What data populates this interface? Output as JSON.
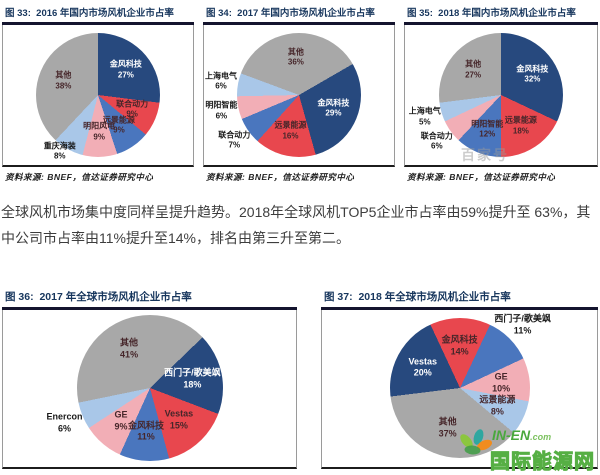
{
  "palette": {
    "navy": "#27497E",
    "red": "#E8474E",
    "blue": "#4A76BE",
    "pink": "#F2AEB6",
    "lightblue": "#A9C7E8",
    "gray": "#A8A8A8",
    "title_color": "#17365D",
    "watermark_green": "#4AA83D"
  },
  "paragraph": {
    "text": "全球风机市场集中度同样呈提升趋势。2018年全球风机TOP5企业市占率由59%提升至 63%，其中公司市占率由11%提升至14%，排名由第三升至第二。"
  },
  "watermark": {
    "site": "IN-EN",
    "tld": ".com",
    "cn": "国际能源网",
    "faint_text": "百家号"
  },
  "chart_data": [
    {
      "type": "pie",
      "fig_no": "图 33:",
      "title": "2016 年国内市场风机企业市占率",
      "source": "资料来源: BNEF，信达证券研究中心",
      "start_angle": 0,
      "legend_position": "none",
      "slices": [
        {
          "name": "金风科技",
          "pct": 27,
          "color": "navy"
        },
        {
          "name": "联合动力",
          "pct": 9,
          "color": "red"
        },
        {
          "name": "远景能源",
          "pct": 9,
          "color": "blue"
        },
        {
          "name": "明阳风电",
          "pct": 9,
          "color": "pink"
        },
        {
          "name": "重庆海装",
          "pct": 8,
          "color": "lightblue",
          "outside": true
        },
        {
          "name": "其他",
          "pct": 38,
          "color": "gray"
        }
      ]
    },
    {
      "type": "pie",
      "fig_no": "图 34:",
      "title": "2017 年国内市场风机企业市占率",
      "source": "资料来源: BNEF，信达证券研究中心",
      "start_angle": 60,
      "legend_position": "none",
      "slices": [
        {
          "name": "金风科技",
          "pct": 29,
          "color": "navy"
        },
        {
          "name": "远景能源",
          "pct": 16,
          "color": "red"
        },
        {
          "name": "联合动力",
          "pct": 7,
          "color": "blue",
          "outside": true
        },
        {
          "name": "明阳智能",
          "pct": 6,
          "color": "pink",
          "outside": true
        },
        {
          "name": "上海电气",
          "pct": 6,
          "color": "lightblue",
          "outside": true
        },
        {
          "name": "其他",
          "pct": 36,
          "color": "gray"
        }
      ]
    },
    {
      "type": "pie",
      "fig_no": "图 35:",
      "title": "2018 年国内市场风机企业市占率",
      "source": "资料来源: BNEF，信达证券研究中心",
      "start_angle": 0,
      "legend_position": "none",
      "slices": [
        {
          "name": "金风科技",
          "pct": 32,
          "color": "navy"
        },
        {
          "name": "远景能源",
          "pct": 18,
          "color": "red"
        },
        {
          "name": "明阳智能",
          "pct": 12,
          "color": "blue"
        },
        {
          "name": "联合动力",
          "pct": 6,
          "color": "pink",
          "outside": true
        },
        {
          "name": "上海电气",
          "pct": 5,
          "color": "lightblue",
          "outside": true
        },
        {
          "name": "其他",
          "pct": 27,
          "color": "gray"
        }
      ]
    },
    {
      "type": "pie",
      "fig_no": "图 36:",
      "title": "2017 年全球市场风机企业市占率",
      "source": "资料来源: BNEF，信达证券研究中心",
      "start_angle": 46,
      "legend_position": "none",
      "slices": [
        {
          "name": "西门子/歌美飒",
          "pct": 18,
          "color": "navy"
        },
        {
          "name": "Vestas",
          "pct": 15,
          "color": "red"
        },
        {
          "name": "金风科技",
          "pct": 11,
          "color": "blue"
        },
        {
          "name": "GE",
          "pct": 9,
          "color": "pink"
        },
        {
          "name": "Enercon",
          "pct": 6,
          "color": "lightblue",
          "outside": true
        },
        {
          "name": "其他",
          "pct": 41,
          "color": "gray"
        }
      ]
    },
    {
      "type": "pie",
      "fig_no": "图 37:",
      "title": "2018 年全球市场风机企业市占率",
      "source": "资料来源: BNEF，信达证券研究中心",
      "start_angle": -25,
      "legend_position": "none",
      "slices": [
        {
          "name": "金风科技",
          "pct": 14,
          "color": "red"
        },
        {
          "name": "西门子/歌美飒",
          "pct": 11,
          "color": "blue",
          "outside": true
        },
        {
          "name": "GE",
          "pct": 10,
          "color": "pink"
        },
        {
          "name": "远景能源",
          "pct": 8,
          "color": "lightblue"
        },
        {
          "name": "其他",
          "pct": 37,
          "color": "gray"
        },
        {
          "name": "Vestas",
          "pct": 20,
          "color": "navy"
        }
      ]
    }
  ]
}
